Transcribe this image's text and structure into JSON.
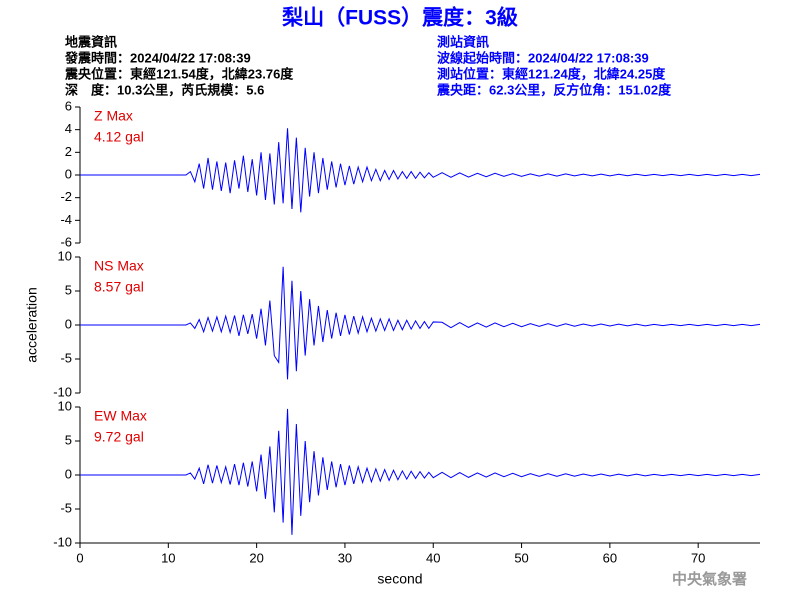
{
  "header": {
    "title": "梨山（FUSS）震度：3級",
    "event_info": [
      "地震資訊",
      "發震時間：2024/04/22 17:08:39",
      "震央位置：東經121.54度，北緯23.76度",
      "深　度：10.3公里，芮氏規模：5.6"
    ],
    "station_info": [
      "測站資訊",
      "波線起始時間：2024/04/22 17:08:39",
      "測站位置：東經121.24度，北緯24.25度",
      "震央距：62.3公里，反方位角：151.02度"
    ]
  },
  "footer": "中央氣象署",
  "chart_data": [
    {
      "type": "line",
      "annotations": [
        "Z Max",
        "4.12 gal"
      ],
      "color": "#0000ff",
      "ylim": [
        -6,
        6
      ],
      "yticks": [
        -6,
        -4,
        -2,
        0,
        2,
        4,
        6
      ],
      "xlim": [
        0,
        77
      ],
      "x": [
        0,
        12,
        12.5,
        13,
        13.5,
        14,
        14.5,
        15,
        15.5,
        16,
        16.5,
        17,
        17.5,
        18,
        18.5,
        19,
        19.5,
        20,
        20.5,
        21,
        21.5,
        22,
        22.5,
        23,
        23.5,
        24,
        24.5,
        25,
        25.5,
        26,
        26.5,
        27,
        27.5,
        28,
        28.5,
        29,
        29.5,
        30,
        30.5,
        31,
        31.5,
        32,
        32.5,
        33,
        33.5,
        34,
        34.5,
        35,
        35.5,
        36,
        36.5,
        37,
        37.5,
        38,
        38.5,
        39,
        39.5,
        40,
        41,
        42,
        43,
        44,
        45,
        46,
        47,
        48,
        49,
        50,
        51,
        52,
        53,
        54,
        55,
        56,
        57,
        58,
        59,
        60,
        61,
        62,
        63,
        64,
        65,
        66,
        67,
        68,
        69,
        70,
        71,
        72,
        73,
        74,
        75,
        76,
        77
      ],
      "values": [
        0,
        0,
        0.3,
        -0.6,
        1.0,
        -1.2,
        1.5,
        -1.3,
        1.2,
        -1.4,
        1.1,
        -1.6,
        1.3,
        -1.2,
        1.7,
        -1.5,
        1.4,
        -1.8,
        2.0,
        -2.2,
        1.9,
        -2.6,
        2.9,
        -2.5,
        4.12,
        -3.0,
        3.3,
        -3.3,
        2.4,
        -1.9,
        2.0,
        -1.6,
        1.5,
        -1.3,
        1.2,
        -1.1,
        1.0,
        -0.9,
        0.8,
        -0.8,
        0.7,
        -0.6,
        0.7,
        -0.5,
        0.5,
        -0.5,
        0.4,
        -0.4,
        0.4,
        -0.35,
        0.3,
        -0.3,
        0.3,
        -0.3,
        0.25,
        -0.25,
        0.2,
        -0.2,
        0.2,
        -0.2,
        0.18,
        -0.18,
        0.15,
        -0.15,
        0.15,
        -0.12,
        0.12,
        -0.12,
        0.1,
        -0.1,
        0.1,
        -0.1,
        0.1,
        -0.08,
        0.08,
        -0.08,
        0.08,
        -0.08,
        0.07,
        -0.07,
        0.07,
        -0.06,
        0.06,
        -0.06,
        0.06,
        -0.05,
        0.05,
        -0.05,
        0.05,
        -0.05,
        0.05,
        -0.05,
        0.05,
        -0.05,
        0.05
      ]
    },
    {
      "type": "line",
      "annotations": [
        "NS Max",
        "8.57 gal"
      ],
      "ylabel": "acceleration",
      "color": "#0000ff",
      "ylim": [
        -10,
        10
      ],
      "yticks": [
        -10,
        -5,
        0,
        5,
        10
      ],
      "xlim": [
        0,
        77
      ],
      "x": [
        0,
        12,
        12.5,
        13,
        13.5,
        14,
        14.5,
        15,
        15.5,
        16,
        16.5,
        17,
        17.5,
        18,
        18.5,
        19,
        19.5,
        20,
        20.5,
        21,
        21.5,
        22,
        22.5,
        23,
        23.5,
        24,
        24.5,
        25,
        25.5,
        26,
        26.5,
        27,
        27.5,
        28,
        28.5,
        29,
        29.5,
        30,
        30.5,
        31,
        31.5,
        32,
        32.5,
        33,
        33.5,
        34,
        34.5,
        35,
        35.5,
        36,
        36.5,
        37,
        37.5,
        38,
        38.5,
        39,
        39.5,
        40,
        41,
        42,
        43,
        44,
        45,
        46,
        47,
        48,
        49,
        50,
        51,
        52,
        53,
        54,
        55,
        56,
        57,
        58,
        59,
        60,
        61,
        62,
        63,
        64,
        65,
        66,
        67,
        68,
        69,
        70,
        71,
        72,
        73,
        74,
        75,
        76,
        77
      ],
      "values": [
        0,
        0,
        0.3,
        -0.5,
        0.8,
        -1.0,
        1.1,
        -0.9,
        1.2,
        -1.0,
        1.3,
        -1.1,
        1.4,
        -1.6,
        1.5,
        -1.3,
        1.6,
        -2.0,
        2.4,
        -3.0,
        3.6,
        -4.5,
        -5.5,
        8.57,
        -8.0,
        6.5,
        -6.8,
        5.0,
        -4.5,
        3.8,
        -3.0,
        2.8,
        -2.5,
        2.2,
        -2.0,
        1.8,
        -1.6,
        1.5,
        -1.4,
        1.3,
        -1.2,
        1.2,
        -1.0,
        1.0,
        -0.9,
        0.9,
        -0.8,
        0.9,
        -0.8,
        0.7,
        -0.7,
        0.7,
        -0.6,
        0.6,
        -0.5,
        0.5,
        -0.5,
        0.45,
        0.4,
        -0.4,
        0.35,
        -0.35,
        0.3,
        -0.3,
        0.3,
        -0.25,
        0.25,
        -0.25,
        0.2,
        -0.2,
        0.2,
        -0.2,
        0.18,
        -0.18,
        0.15,
        -0.15,
        0.15,
        -0.15,
        0.12,
        -0.12,
        0.12,
        -0.12,
        0.1,
        -0.1,
        0.1,
        -0.1,
        0.1,
        -0.1,
        0.1,
        -0.1,
        0.1,
        -0.1,
        0.1,
        -0.1,
        0.1
      ]
    },
    {
      "type": "line",
      "annotations": [
        "EW Max",
        "9.72 gal"
      ],
      "color": "#0000ff",
      "ylim": [
        -10,
        10
      ],
      "yticks": [
        -10,
        -5,
        0,
        5,
        10
      ],
      "xlim": [
        0,
        77
      ],
      "xticks": [
        0,
        10,
        20,
        30,
        40,
        50,
        60,
        70
      ],
      "xlabel": "second",
      "x": [
        0,
        12,
        12.5,
        13,
        13.5,
        14,
        14.5,
        15,
        15.5,
        16,
        16.5,
        17,
        17.5,
        18,
        18.5,
        19,
        19.5,
        20,
        20.5,
        21,
        21.5,
        22,
        22.5,
        23,
        23.5,
        24,
        24.5,
        25,
        25.5,
        26,
        26.5,
        27,
        27.5,
        28,
        28.5,
        29,
        29.5,
        30,
        30.5,
        31,
        31.5,
        32,
        32.5,
        33,
        33.5,
        34,
        34.5,
        35,
        35.5,
        36,
        36.5,
        37,
        37.5,
        38,
        38.5,
        39,
        39.5,
        40,
        41,
        42,
        43,
        44,
        45,
        46,
        47,
        48,
        49,
        50,
        51,
        52,
        53,
        54,
        55,
        56,
        57,
        58,
        59,
        60,
        61,
        62,
        63,
        64,
        65,
        66,
        67,
        68,
        69,
        70,
        71,
        72,
        73,
        74,
        75,
        76,
        77
      ],
      "values": [
        0,
        0,
        0.3,
        -0.6,
        1.0,
        -1.3,
        1.5,
        -1.2,
        1.4,
        -1.1,
        1.2,
        -1.4,
        1.6,
        -1.5,
        1.8,
        -1.7,
        2.0,
        -2.4,
        3.0,
        -3.5,
        4.2,
        -5.5,
        6.5,
        -7.0,
        9.72,
        -8.8,
        7.5,
        -6.0,
        5.0,
        -4.0,
        3.5,
        -3.0,
        2.6,
        -2.2,
        2.0,
        -1.8,
        1.6,
        -1.5,
        1.4,
        -1.3,
        1.2,
        -1.1,
        1.0,
        -1.0,
        0.9,
        -0.9,
        0.8,
        -0.8,
        0.7,
        -0.7,
        0.6,
        -0.6,
        0.55,
        -0.5,
        0.5,
        -0.45,
        0.4,
        -0.4,
        0.4,
        -0.4,
        0.35,
        -0.35,
        0.3,
        -0.3,
        0.3,
        -0.25,
        0.25,
        -0.25,
        0.2,
        -0.2,
        0.2,
        -0.2,
        0.18,
        -0.18,
        0.15,
        -0.15,
        0.15,
        -0.15,
        0.12,
        -0.12,
        0.12,
        -0.12,
        0.1,
        -0.1,
        0.1,
        -0.1,
        0.1,
        -0.1,
        0.1,
        -0.1,
        0.1,
        -0.1,
        0.1,
        -0.1,
        0.1
      ]
    }
  ]
}
